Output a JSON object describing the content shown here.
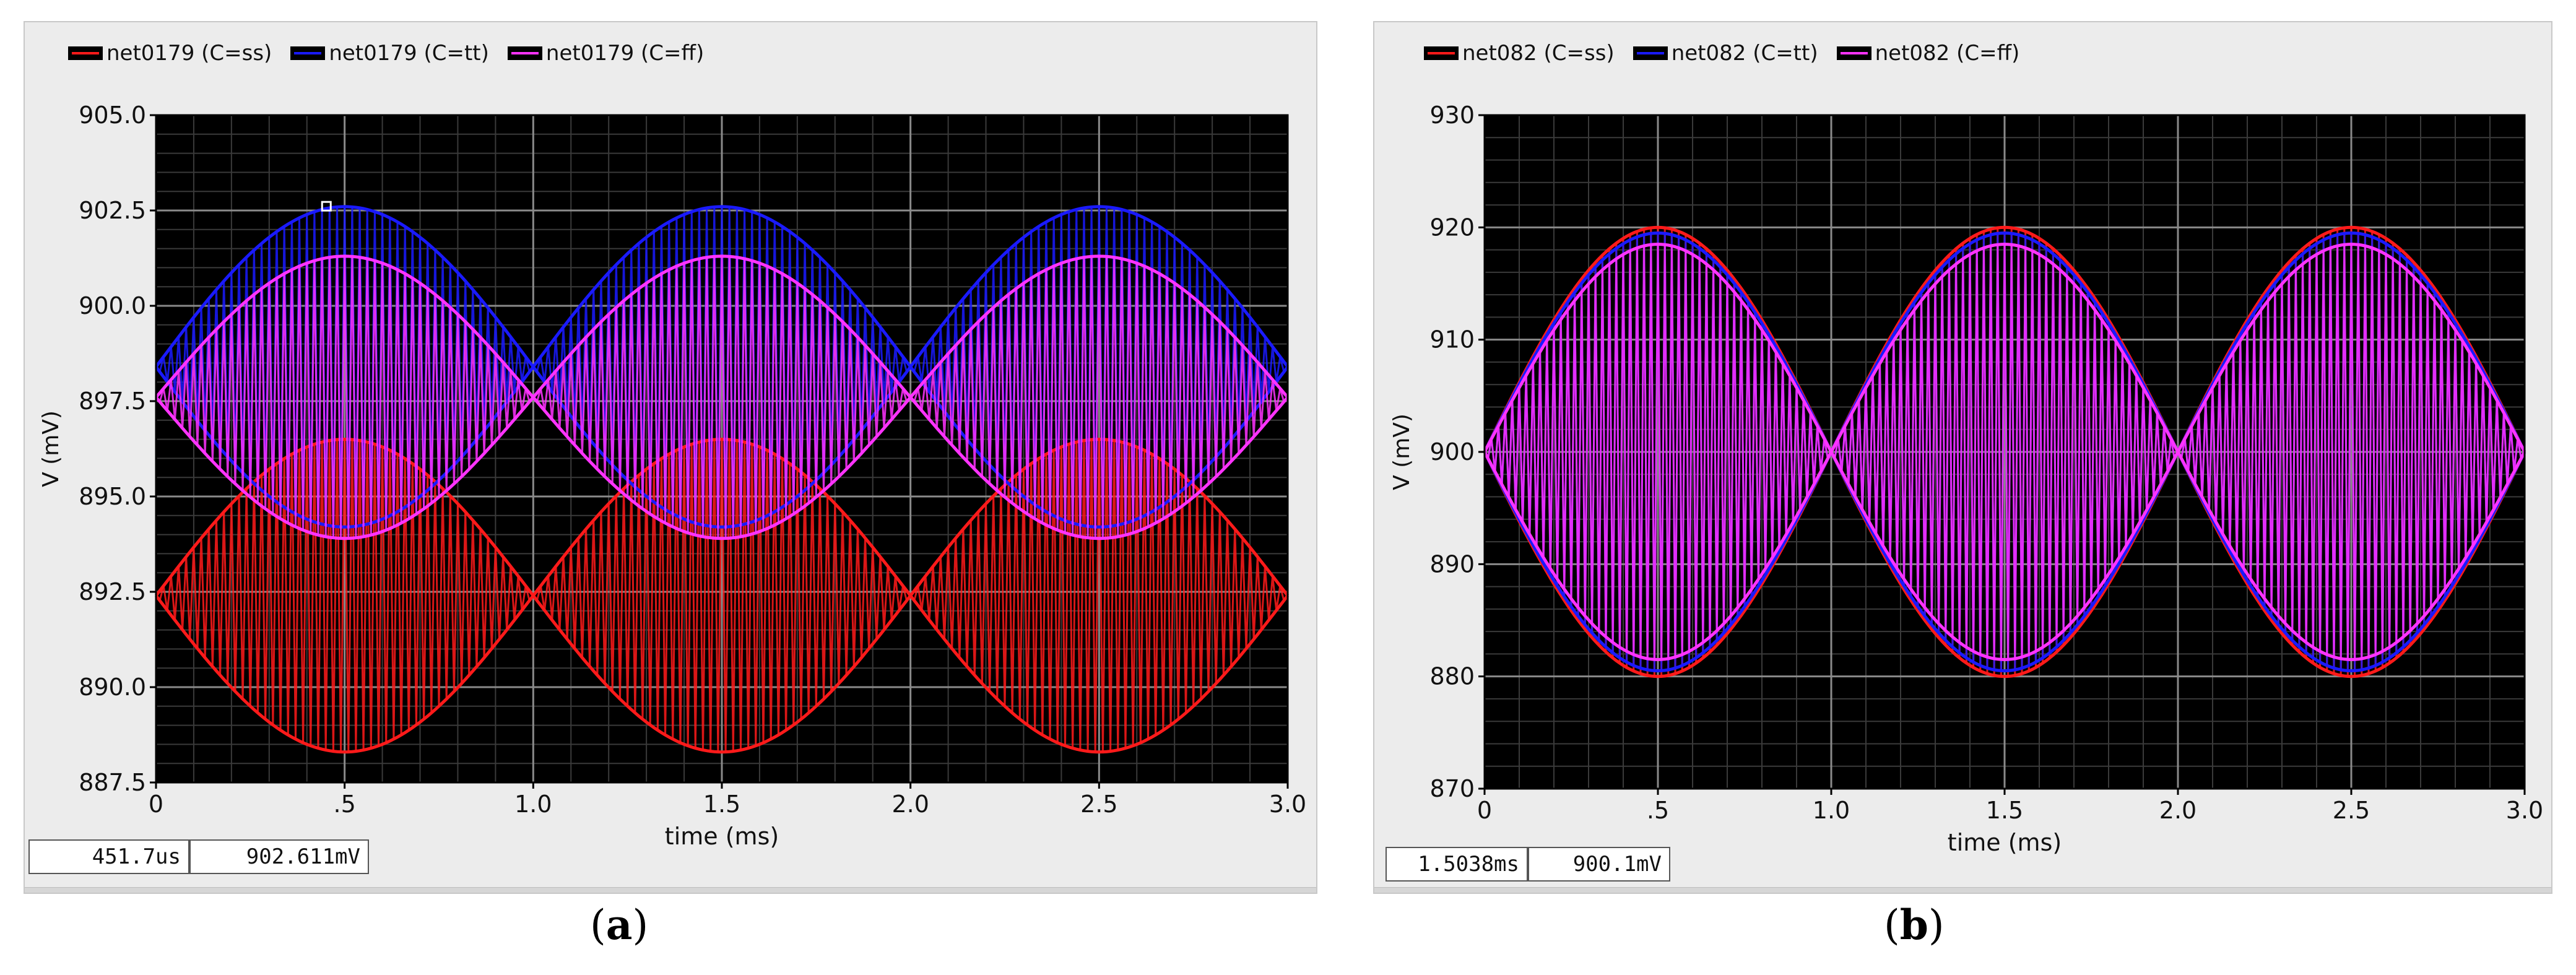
{
  "panels": [
    {
      "caption": "a",
      "legend": [
        {
          "label": "net0179 (C=ss)",
          "color": "#ff1a1a"
        },
        {
          "label": "net0179 (C=tt)",
          "color": "#1a1aff"
        },
        {
          "label": "net0179 (C=ff)",
          "color": "#ff33ff"
        }
      ],
      "readout": {
        "time": "451.7us",
        "value": "902.611mV"
      }
    },
    {
      "caption": "b",
      "legend": [
        {
          "label": "net082 (C=ss)",
          "color": "#ff1a1a"
        },
        {
          "label": "net082 (C=tt)",
          "color": "#1a1aff"
        },
        {
          "label": "net082 (C=ff)",
          "color": "#ff33ff"
        }
      ],
      "readout": {
        "time": "1.5038ms",
        "value": "900.1mV"
      }
    }
  ],
  "chart_data": [
    {
      "type": "line",
      "xlabel": "time (ms)",
      "ylabel": "V (mV)",
      "xlim": [
        0,
        3.0
      ],
      "ylim": [
        887.5,
        905.0
      ],
      "x_ticks": [
        "0",
        ".5",
        "1.0",
        "1.5",
        "2.0",
        "2.5",
        "3.0"
      ],
      "y_ticks": [
        "887.5",
        "890.0",
        "892.5",
        "895.0",
        "897.5",
        "900.0",
        "902.5",
        "905.0"
      ],
      "grid": true,
      "legend_position": "top-left",
      "background": "#000000",
      "envelope_period_ms": 1.0,
      "series": [
        {
          "name": "net0179 (C=ss)",
          "color": "#ff1a1a",
          "center": 892.4,
          "amplitude": 4.1,
          "x": [
            0,
            0.5,
            1.0,
            1.5,
            2.0,
            2.5,
            3.0
          ],
          "envelope_high": [
            892.4,
            896.5,
            892.4,
            896.5,
            892.4,
            896.5,
            892.4
          ],
          "envelope_low": [
            892.4,
            888.3,
            892.4,
            888.3,
            892.4,
            888.3,
            892.4
          ]
        },
        {
          "name": "net0179 (C=tt)",
          "color": "#1a1aff",
          "center": 898.4,
          "amplitude": 4.2,
          "x": [
            0,
            0.5,
            1.0,
            1.5,
            2.0,
            2.5,
            3.0
          ],
          "envelope_high": [
            898.4,
            902.6,
            898.4,
            902.6,
            898.4,
            902.6,
            898.4
          ],
          "envelope_low": [
            898.4,
            894.2,
            898.4,
            894.2,
            898.4,
            894.2,
            898.4
          ]
        },
        {
          "name": "net0179 (C=ff)",
          "color": "#ff33ff",
          "center": 897.6,
          "amplitude": 3.7,
          "x": [
            0,
            0.5,
            1.0,
            1.5,
            2.0,
            2.5,
            3.0
          ],
          "envelope_high": [
            897.6,
            901.3,
            897.6,
            901.3,
            897.6,
            901.3,
            897.6
          ],
          "envelope_low": [
            897.6,
            893.9,
            897.6,
            893.9,
            897.6,
            893.9,
            897.6
          ]
        }
      ],
      "marker": {
        "x_ms": 0.4517,
        "y": 902.611
      }
    },
    {
      "type": "line",
      "xlabel": "time (ms)",
      "ylabel": "V (mV)",
      "xlim": [
        0,
        3.0
      ],
      "ylim": [
        870,
        930
      ],
      "x_ticks": [
        "0",
        ".5",
        "1.0",
        "1.5",
        "2.0",
        "2.5",
        "3.0"
      ],
      "y_ticks": [
        "870",
        "880",
        "890",
        "900",
        "910",
        "920",
        "930"
      ],
      "grid": true,
      "legend_position": "top-left",
      "background": "#000000",
      "envelope_period_ms": 1.0,
      "series": [
        {
          "name": "net082 (C=ss)",
          "color": "#ff1a1a",
          "center": 900,
          "amplitude": 20,
          "x": [
            0,
            0.5,
            1.0,
            1.5,
            2.0,
            2.5,
            3.0
          ],
          "envelope_high": [
            900,
            920,
            900,
            920,
            900,
            920,
            900
          ],
          "envelope_low": [
            900,
            880,
            900,
            880,
            900,
            880,
            900
          ]
        },
        {
          "name": "net082 (C=tt)",
          "color": "#1a1aff",
          "center": 900,
          "amplitude": 19.5,
          "x": [
            0,
            0.5,
            1.0,
            1.5,
            2.0,
            2.5,
            3.0
          ],
          "envelope_high": [
            900,
            919.5,
            900,
            919.5,
            900,
            919.5,
            900
          ],
          "envelope_low": [
            900,
            880.5,
            900,
            880.5,
            900,
            880.5,
            900
          ]
        },
        {
          "name": "net082 (C=ff)",
          "color": "#ff33ff",
          "center": 900,
          "amplitude": 18.5,
          "x": [
            0,
            0.5,
            1.0,
            1.5,
            2.0,
            2.5,
            3.0
          ],
          "envelope_high": [
            900,
            918.5,
            900,
            918.5,
            900,
            918.5,
            900
          ],
          "envelope_low": [
            900,
            881.5,
            900,
            881.5,
            900,
            881.5,
            900
          ]
        }
      ]
    }
  ]
}
